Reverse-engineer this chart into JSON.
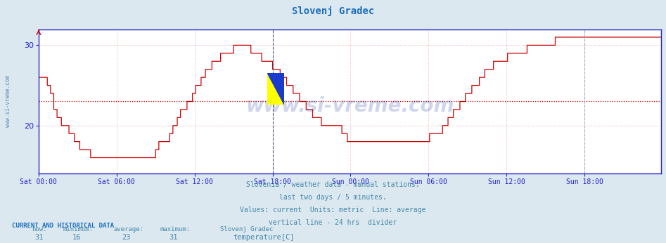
{
  "title": "Slovenj Gradec",
  "title_color": "#1a6ebd",
  "background_color": "#dce8f0",
  "plot_bg_color": "#ffffff",
  "line_color": "#cc0000",
  "avg_line_color": "#cc0000",
  "avg_line_value": 23,
  "vline_color": "#666688",
  "ylim": [
    14,
    32
  ],
  "yticks": [
    20,
    30
  ],
  "axis_color": "#2222cc",
  "grid_color": "#dd6666",
  "watermark": "www.si-vreme.com",
  "watermark_color": "#2244aa",
  "subtitle_lines": [
    "Slovenia / weather data - manual stations.",
    "last two days / 5 minutes.",
    "Values: current  Units: metric  Line: average",
    "vertical line - 24 hrs  divider"
  ],
  "subtitle_color": "#4488aa",
  "footer_label": "CURRENT AND HISTORICAL DATA",
  "footer_color": "#1a6ebd",
  "stats_labels": [
    "now:",
    "minimum:",
    "average:",
    "maximum:"
  ],
  "stats_values": [
    31,
    16,
    23,
    31
  ],
  "stats_color": "#4488aa",
  "legend_label": "temperature[C]",
  "legend_station": "Slovenj Gradec",
  "legend_color": "#cc0000",
  "xtick_labels": [
    "Sat 00:00",
    "Sat 06:00",
    "Sat 12:00",
    "Sat 18:00",
    "Sun 00:00",
    "Sun 06:00",
    "Sun 12:00",
    "Sun 18:00"
  ],
  "xtick_positions": [
    0,
    72,
    144,
    216,
    288,
    360,
    432,
    504
  ],
  "total_points": 576,
  "temperature_data": [
    26,
    26,
    26,
    26,
    26,
    26,
    26,
    26,
    25,
    25,
    25,
    24,
    24,
    24,
    22,
    22,
    22,
    21,
    21,
    21,
    21,
    20,
    20,
    20,
    20,
    20,
    20,
    20,
    19,
    19,
    19,
    19,
    19,
    18,
    18,
    18,
    18,
    18,
    17,
    17,
    17,
    17,
    17,
    17,
    17,
    17,
    17,
    17,
    16,
    16,
    16,
    16,
    16,
    16,
    16,
    16,
    16,
    16,
    16,
    16,
    16,
    16,
    16,
    16,
    16,
    16,
    16,
    16,
    16,
    16,
    16,
    16,
    16,
    16,
    16,
    16,
    16,
    16,
    16,
    16,
    16,
    16,
    16,
    16,
    16,
    16,
    16,
    16,
    16,
    16,
    16,
    16,
    16,
    16,
    16,
    16,
    16,
    16,
    16,
    16,
    16,
    16,
    16,
    16,
    16,
    16,
    16,
    16,
    17,
    17,
    17,
    18,
    18,
    18,
    18,
    18,
    18,
    18,
    18,
    18,
    18,
    19,
    19,
    19,
    20,
    20,
    20,
    20,
    21,
    21,
    21,
    22,
    22,
    22,
    22,
    22,
    22,
    23,
    23,
    23,
    23,
    23,
    24,
    24,
    24,
    25,
    25,
    25,
    25,
    25,
    26,
    26,
    26,
    26,
    27,
    27,
    27,
    27,
    27,
    27,
    28,
    28,
    28,
    28,
    28,
    28,
    28,
    28,
    29,
    29,
    29,
    29,
    29,
    29,
    29,
    29,
    29,
    29,
    29,
    29,
    30,
    30,
    30,
    30,
    30,
    30,
    30,
    30,
    30,
    30,
    30,
    30,
    30,
    30,
    30,
    30,
    29,
    29,
    29,
    29,
    29,
    29,
    29,
    29,
    29,
    29,
    28,
    28,
    28,
    28,
    28,
    28,
    28,
    28,
    28,
    28,
    27,
    27,
    27,
    27,
    27,
    27,
    27,
    26,
    26,
    26,
    26,
    26,
    26,
    25,
    25,
    25,
    25,
    25,
    25,
    24,
    24,
    24,
    24,
    24,
    24,
    23,
    23,
    23,
    23,
    23,
    23,
    22,
    22,
    22,
    22,
    22,
    22,
    21,
    21,
    21,
    21,
    21,
    21,
    21,
    21,
    20,
    20,
    20,
    20,
    20,
    20,
    20,
    20,
    20,
    20,
    20,
    20,
    20,
    20,
    20,
    20,
    20,
    20,
    20,
    19,
    19,
    19,
    19,
    19,
    18,
    18,
    18,
    18,
    18,
    18,
    18,
    18,
    18,
    18,
    18,
    18,
    18,
    18,
    18,
    18,
    18,
    18,
    18,
    18,
    18,
    18,
    18,
    18,
    18,
    18,
    18,
    18,
    18,
    18,
    18,
    18,
    18,
    18,
    18,
    18,
    18,
    18,
    18,
    18,
    18,
    18,
    18,
    18,
    18,
    18,
    18,
    18,
    18,
    18,
    18,
    18,
    18,
    18,
    18,
    18,
    18,
    18,
    18,
    18,
    18,
    18,
    18,
    18,
    18,
    18,
    18,
    18,
    18,
    18,
    18,
    18,
    18,
    18,
    18,
    18,
    19,
    19,
    19,
    19,
    19,
    19,
    19,
    19,
    19,
    19,
    19,
    19,
    20,
    20,
    20,
    20,
    20,
    21,
    21,
    21,
    21,
    21,
    22,
    22,
    22,
    22,
    22,
    22,
    23,
    23,
    23,
    23,
    23,
    24,
    24,
    24,
    24,
    24,
    24,
    25,
    25,
    25,
    25,
    25,
    25,
    25,
    26,
    26,
    26,
    26,
    26,
    27,
    27,
    27,
    27,
    27,
    27,
    27,
    27,
    28,
    28,
    28,
    28,
    28,
    28,
    28,
    28,
    28,
    28,
    28,
    28,
    28,
    29,
    29,
    29,
    29,
    29,
    29,
    29,
    29,
    29,
    29,
    29,
    29,
    29,
    29,
    29,
    29,
    29,
    29,
    30,
    30,
    30,
    30,
    30,
    30,
    30,
    30,
    30,
    30,
    30,
    30,
    30,
    30,
    30,
    30,
    30,
    30,
    30,
    30,
    30,
    30,
    30,
    30,
    30,
    30,
    31,
    31,
    31,
    31,
    31,
    31,
    31,
    31,
    31,
    31,
    31,
    31,
    31,
    31,
    31,
    31,
    31,
    31,
    31,
    31,
    31,
    31,
    31,
    31,
    31,
    31,
    31,
    31,
    31,
    31,
    31,
    31,
    31,
    31,
    31,
    31,
    31,
    31,
    31,
    31,
    31,
    31,
    31,
    31,
    31,
    31,
    31,
    31,
    31,
    31,
    31,
    31,
    31,
    31,
    31,
    31,
    31,
    31,
    31,
    31,
    31,
    31,
    31,
    31,
    31,
    31,
    31,
    31,
    31,
    31,
    31,
    31,
    31,
    31,
    31,
    31,
    31,
    31,
    31,
    31,
    31,
    31,
    31,
    31,
    31,
    31,
    31,
    31,
    31,
    31,
    31,
    31,
    31,
    31,
    31,
    31,
    31,
    31,
    31
  ]
}
